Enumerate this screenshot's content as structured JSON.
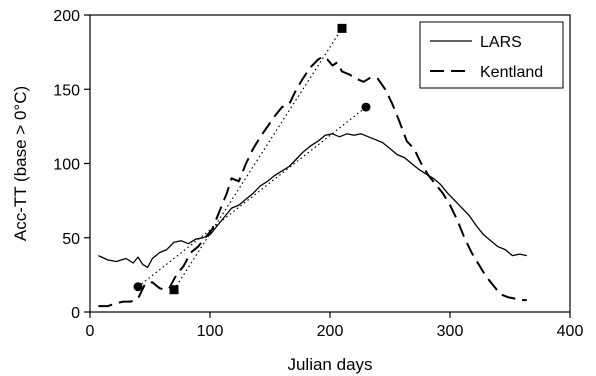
{
  "chart_data": {
    "type": "line",
    "xlabel": "Julian days",
    "ylabel": "Acc-TT (base > 0°C)",
    "xlim": [
      0,
      400
    ],
    "ylim": [
      0,
      200
    ],
    "xticks": [
      0,
      100,
      200,
      300,
      400
    ],
    "yticks": [
      0,
      50,
      100,
      150,
      200
    ],
    "grid": false,
    "legend": {
      "placement": "top-right",
      "entries": [
        "LARS",
        "Kentland"
      ]
    },
    "series": [
      {
        "name": "LARS",
        "style": "solid",
        "color": "#000000",
        "x": [
          7,
          15,
          22,
          30,
          36,
          40,
          44,
          48,
          52,
          58,
          64,
          70,
          76,
          82,
          88,
          94,
          100,
          106,
          112,
          118,
          124,
          130,
          136,
          142,
          148,
          154,
          160,
          166,
          172,
          178,
          184,
          190,
          196,
          202,
          208,
          214,
          220,
          226,
          232,
          238,
          244,
          250,
          256,
          262,
          268,
          274,
          280,
          286,
          292,
          298,
          304,
          310,
          316,
          322,
          328,
          334,
          340,
          346,
          352,
          358,
          364
        ],
        "y": [
          38,
          35,
          34,
          36,
          33,
          37,
          32,
          30,
          36,
          40,
          42,
          47,
          48,
          46,
          49,
          50,
          52,
          58,
          64,
          70,
          72,
          76,
          80,
          85,
          88,
          92,
          95,
          98,
          103,
          108,
          112,
          115,
          119,
          120,
          118,
          120,
          119,
          120,
          118,
          116,
          114,
          110,
          106,
          104,
          100,
          96,
          93,
          90,
          86,
          80,
          75,
          70,
          65,
          58,
          52,
          48,
          44,
          42,
          38,
          39,
          38
        ]
      },
      {
        "name": "Kentland",
        "style": "dashed",
        "color": "#000000",
        "x": [
          7,
          15,
          22,
          28,
          34,
          40,
          46,
          52,
          58,
          62,
          66,
          72,
          78,
          84,
          90,
          96,
          102,
          108,
          114,
          118,
          124,
          130,
          136,
          142,
          148,
          154,
          160,
          166,
          172,
          178,
          184,
          190,
          194,
          198,
          202,
          206,
          210,
          216,
          222,
          228,
          234,
          240,
          246,
          252,
          258,
          264,
          270,
          276,
          282,
          288,
          294,
          300,
          306,
          312,
          318,
          324,
          330,
          336,
          342,
          348,
          354,
          358,
          364
        ],
        "y": [
          4,
          4,
          6,
          7,
          7,
          9,
          19,
          20,
          16,
          15,
          16,
          25,
          31,
          40,
          44,
          50,
          56,
          68,
          80,
          90,
          88,
          100,
          110,
          118,
          125,
          132,
          138,
          140,
          150,
          158,
          165,
          170,
          172,
          170,
          166,
          168,
          162,
          160,
          157,
          155,
          158,
          157,
          150,
          140,
          128,
          115,
          110,
          100,
          92,
          86,
          80,
          72,
          62,
          50,
          40,
          32,
          24,
          18,
          12,
          10,
          9,
          8,
          8
        ]
      },
      {
        "name": "",
        "style": "dotted",
        "color": "#000000",
        "marker": "circle",
        "x": [
          40,
          230
        ],
        "y": [
          17,
          138
        ]
      },
      {
        "name": "",
        "style": "dotted",
        "color": "#000000",
        "marker": "square",
        "x": [
          70,
          210
        ],
        "y": [
          15,
          191
        ]
      }
    ]
  }
}
